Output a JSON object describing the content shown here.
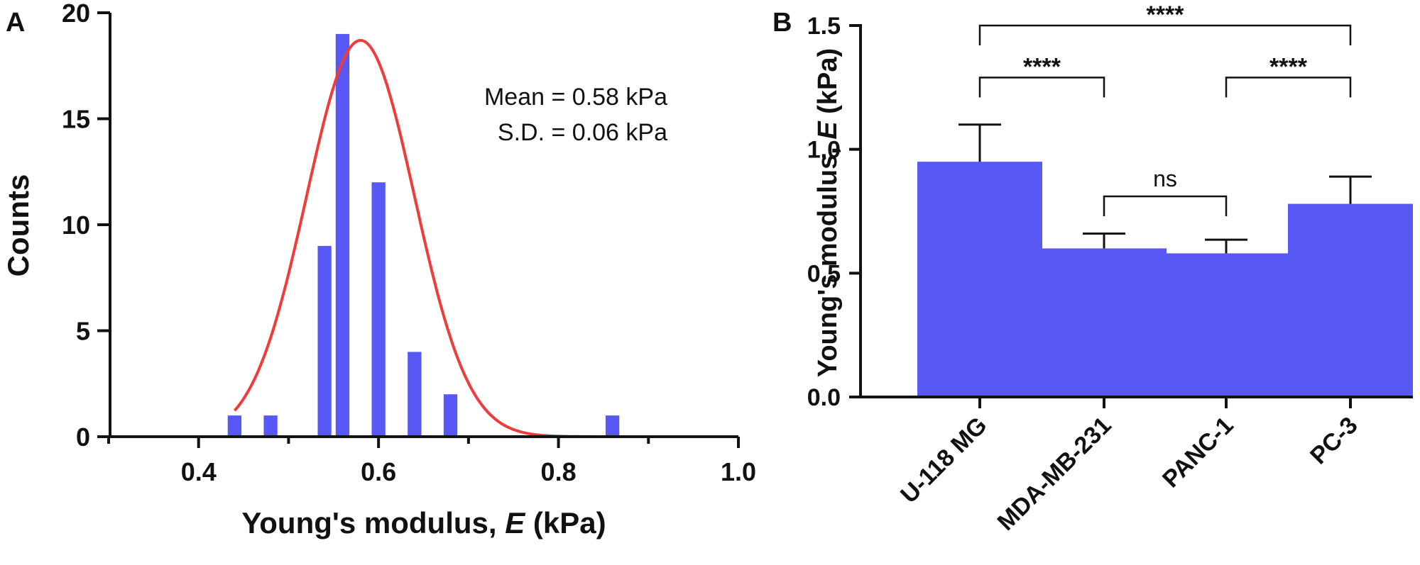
{
  "chart_data": [
    {
      "type": "bar",
      "panel_label": "A",
      "xlabel_prefix": "Young's modulus, ",
      "xlabel_var": "E",
      "xlabel_suffix": " (kPa)",
      "ylabel": "Counts",
      "xlim": [
        0.3,
        1.0
      ],
      "ylim": [
        0,
        20
      ],
      "xticks": [
        "0.4",
        "0.6",
        "0.8",
        "1.0"
      ],
      "xtick_values": [
        0.4,
        0.6,
        0.8,
        1.0
      ],
      "yticks": [
        "0",
        "5",
        "10",
        "15",
        "20"
      ],
      "ytick_values": [
        0,
        5,
        10,
        15,
        20
      ],
      "bin_width": 0.02,
      "bins": [
        {
          "x": 0.44,
          "count": 1
        },
        {
          "x": 0.48,
          "count": 1
        },
        {
          "x": 0.54,
          "count": 9
        },
        {
          "x": 0.56,
          "count": 19
        },
        {
          "x": 0.6,
          "count": 12
        },
        {
          "x": 0.64,
          "count": 4
        },
        {
          "x": 0.68,
          "count": 2
        },
        {
          "x": 0.86,
          "count": 1
        }
      ],
      "fit": {
        "type": "gaussian",
        "mean": 0.58,
        "sd": 0.06,
        "peak": 18.7,
        "x_range": [
          0.44,
          0.88
        ]
      },
      "annotation": [
        "Mean = 0.58 kPa",
        "S.D. = 0.06 kPa"
      ],
      "bar_color": "#5858f5",
      "fit_color": "#f03b3b"
    },
    {
      "type": "bar",
      "panel_label": "B",
      "ylabel_prefix": "Young's modulus, ",
      "ylabel_var": "E",
      "ylabel_suffix": " (kPa)",
      "ylim": [
        0,
        1.5
      ],
      "yticks": [
        "0.0",
        "0.5",
        "1.0",
        "1.5"
      ],
      "ytick_values": [
        0,
        0.5,
        1.0,
        1.5
      ],
      "categories": [
        "U-118 MG",
        "MDA-MB-231",
        "PANC-1",
        "PC-3"
      ],
      "values": [
        0.95,
        0.6,
        0.58,
        0.78
      ],
      "errors": [
        0.15,
        0.06,
        0.055,
        0.11
      ],
      "bar_color": "#5858f5",
      "significance": [
        {
          "from": 0,
          "to": 1,
          "label": "****",
          "y": 1.29
        },
        {
          "from": 2,
          "to": 3,
          "label": "****",
          "y": 1.29
        },
        {
          "from": 0,
          "to": 3,
          "label": "****",
          "y": 1.5
        },
        {
          "from": 1,
          "to": 2,
          "label": "ns",
          "y": 0.81
        }
      ]
    }
  ]
}
